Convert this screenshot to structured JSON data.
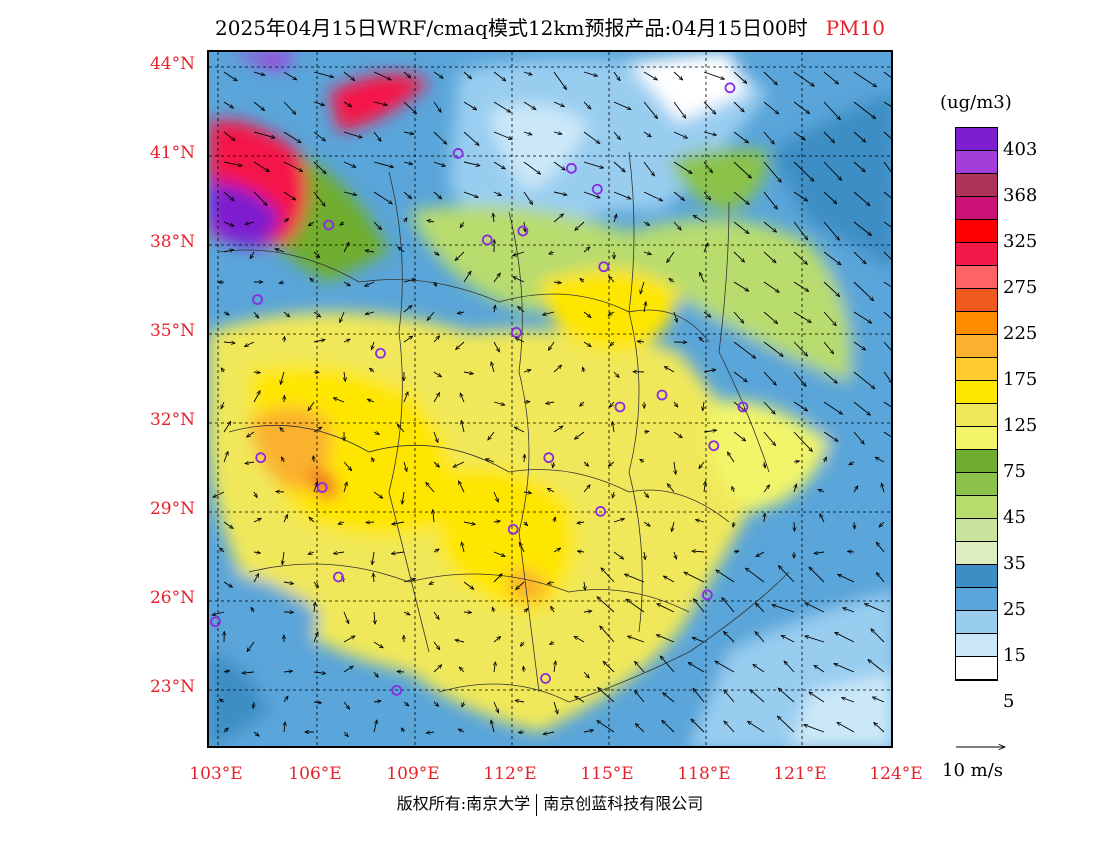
{
  "title": {
    "text": "2025年04月15日WRF/cmaq模式12km预报产品:04月15日00时",
    "variable": "PM10"
  },
  "map": {
    "lat_labels": [
      "44°N",
      "41°N",
      "38°N",
      "35°N",
      "32°N",
      "29°N",
      "26°N",
      "23°N"
    ],
    "lon_labels": [
      "103°E",
      "106°E",
      "109°E",
      "112°E",
      "115°E",
      "118°E",
      "121°E",
      "124°E"
    ],
    "extent": {
      "lon_min": 102.8,
      "lon_max": 124.0,
      "lat_min": 20.8,
      "lat_max": 44.2
    },
    "city_marker_color": "#8a2be2",
    "cities_lonlat": [
      [
        118.9,
        43.0
      ],
      [
        110.5,
        40.8
      ],
      [
        114.0,
        40.3
      ],
      [
        114.8,
        39.6
      ],
      [
        106.5,
        38.4
      ],
      [
        111.4,
        37.9
      ],
      [
        112.5,
        38.2
      ],
      [
        115.0,
        37.0
      ],
      [
        104.3,
        35.9
      ],
      [
        112.3,
        34.8
      ],
      [
        108.1,
        34.1
      ],
      [
        115.5,
        32.3
      ],
      [
        116.8,
        32.7
      ],
      [
        119.3,
        32.3
      ],
      [
        118.4,
        31.0
      ],
      [
        104.4,
        30.6
      ],
      [
        113.3,
        30.6
      ],
      [
        106.3,
        29.6
      ],
      [
        112.2,
        28.2
      ],
      [
        114.9,
        28.8
      ],
      [
        106.8,
        26.6
      ],
      [
        118.2,
        26.0
      ],
      [
        103.0,
        25.1
      ],
      [
        108.6,
        22.8
      ],
      [
        113.2,
        23.2
      ]
    ]
  },
  "legend": {
    "units": "(ug/m3)",
    "colors": [
      "#7e1fcf",
      "#a23fd8",
      "#ad3358",
      "#cb1377",
      "#ff0000",
      "#f5194a",
      "#ff6464",
      "#ef5a21",
      "#ff8c00",
      "#fab12d",
      "#ffcb2d",
      "#ffe600",
      "#f0e85a",
      "#f2f56a",
      "#6fad2e",
      "#8bc34a",
      "#b8dc6e",
      "#c8e39e",
      "#dfeec0",
      "#3e8ec4",
      "#5aa5d9",
      "#98cdf0",
      "#cbe8f8",
      "#ffffff"
    ],
    "labels": [
      "403",
      "368",
      "325",
      "275",
      "225",
      "175",
      "125",
      "75",
      "45",
      "35",
      "25",
      "15",
      "5"
    ]
  },
  "wind_reference": {
    "label": "10 m/s"
  },
  "footer": {
    "left": "版权所有:南京大学",
    "right": "南京创蓝科技有限公司"
  }
}
